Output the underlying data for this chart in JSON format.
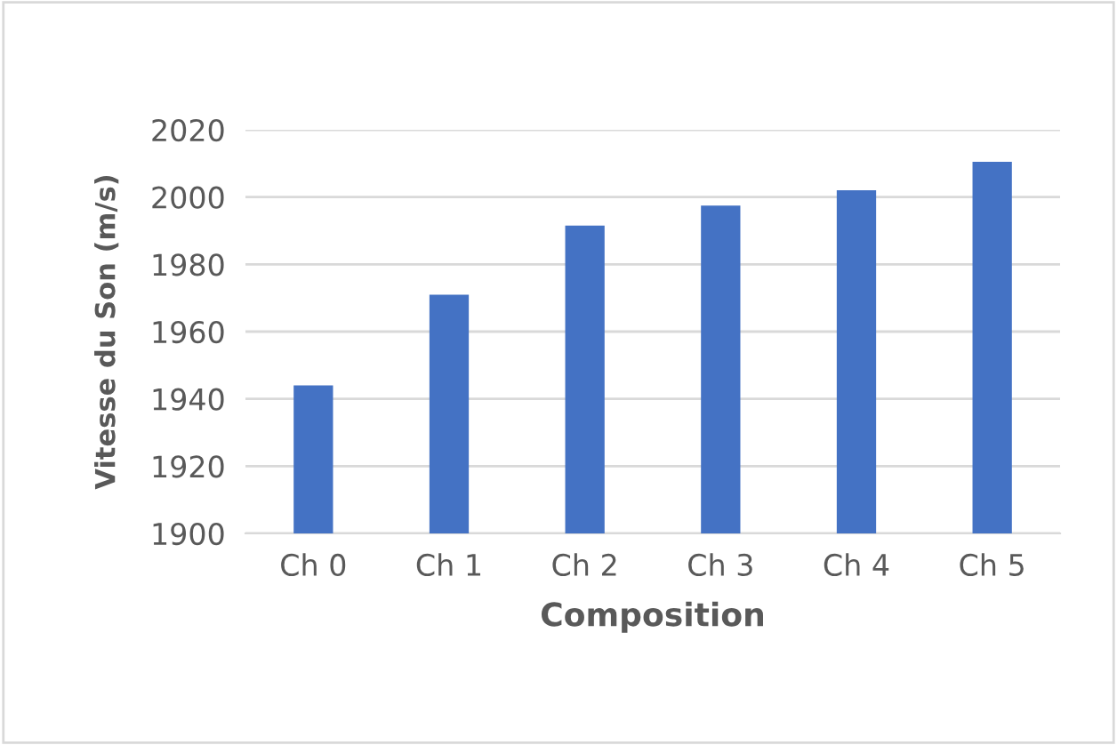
{
  "chart_data": {
    "type": "bar",
    "xlabel": "Composition",
    "ylabel": "Vitesse du Son (m/s)",
    "categories": [
      "Ch 0",
      "Ch 1",
      "Ch 2",
      "Ch 3",
      "Ch 4",
      "Ch 5"
    ],
    "values": [
      1944,
      1971,
      1991.5,
      1997.5,
      2002,
      2010.5
    ],
    "color": "#4472c4",
    "ylim": [
      1900,
      2020
    ],
    "yticks": [
      1900,
      1920,
      1940,
      1960,
      1980,
      2000,
      2020
    ],
    "grid": "y",
    "legend": false
  }
}
